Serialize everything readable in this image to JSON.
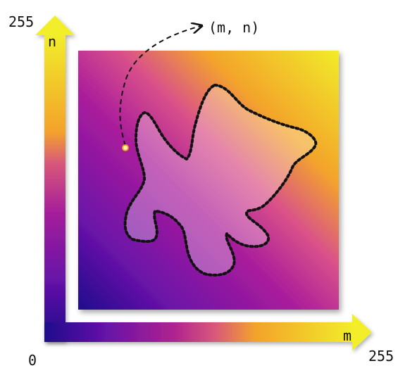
{
  "diagram": {
    "axis_x": {
      "label": "m",
      "max_label": "255"
    },
    "axis_y": {
      "label": "n",
      "max_label": "255"
    },
    "origin_label": "0",
    "point_label": "(m, n)"
  },
  "colors": {
    "deep_indigo": "#1e0a8c",
    "purple": "#8e1aa8",
    "magenta": "#b3258f",
    "orange": "#f4a42a",
    "yellow": "#f0ee2a",
    "outline": "#111111",
    "point_fill": "#fff2b0",
    "point_stroke": "#f2a01c"
  }
}
